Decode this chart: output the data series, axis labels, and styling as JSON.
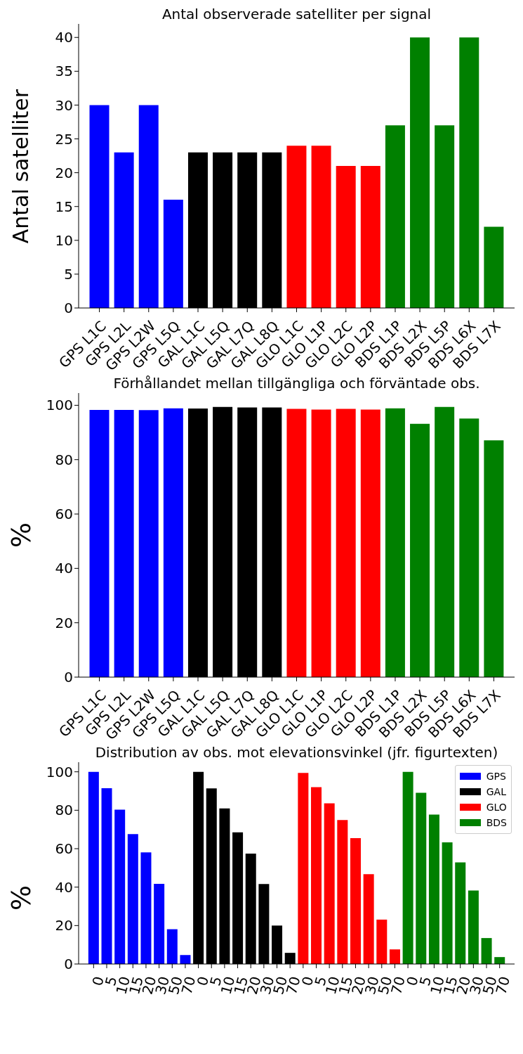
{
  "chart_data": [
    {
      "type": "bar",
      "title": "Antal observerade satelliter per signal",
      "ylabel": "Antal satelliter",
      "categories": [
        "GPS L1C",
        "GPS L2L",
        "GPS L2W",
        "GPS L5Q",
        "GAL L1C",
        "GAL L5Q",
        "GAL L7Q",
        "GAL L8Q",
        "GLO L1C",
        "GLO L1P",
        "GLO L2C",
        "GLO L2P",
        "BDS L1P",
        "BDS L2X",
        "BDS L5P",
        "BDS L6X",
        "BDS L7X"
      ],
      "values": [
        30,
        23,
        30,
        16,
        23,
        23,
        23,
        23,
        24,
        24,
        21,
        21,
        27,
        40,
        27,
        40,
        12
      ],
      "colors": [
        "#0000ff",
        "#0000ff",
        "#0000ff",
        "#0000ff",
        "#000000",
        "#000000",
        "#000000",
        "#000000",
        "#ff0000",
        "#ff0000",
        "#ff0000",
        "#ff0000",
        "#008000",
        "#008000",
        "#008000",
        "#008000",
        "#008000"
      ],
      "ylim": [
        0,
        42
      ],
      "yticks": [
        0,
        5,
        10,
        15,
        20,
        25,
        30,
        35,
        40
      ],
      "grid": false,
      "legend": false
    },
    {
      "type": "bar",
      "title": "Förhållandet mellan tillgängliga och förväntade obs.",
      "ylabel": "%",
      "categories": [
        "GPS L1C",
        "GPS L2L",
        "GPS L2W",
        "GPS L5Q",
        "GAL L1C",
        "GAL L5Q",
        "GAL L7Q",
        "GAL L8Q",
        "GLO L1C",
        "GLO L1P",
        "GLO L2C",
        "GLO L2P",
        "BDS L1P",
        "BDS L2X",
        "BDS L5P",
        "BDS L6X",
        "BDS L7X"
      ],
      "values": [
        98.3,
        98.3,
        98.2,
        98.9,
        98.8,
        99.4,
        99.2,
        99.2,
        98.7,
        98.4,
        98.7,
        98.4,
        98.9,
        93.2,
        99.4,
        95.1,
        87.1
      ],
      "colors": [
        "#0000ff",
        "#0000ff",
        "#0000ff",
        "#0000ff",
        "#000000",
        "#000000",
        "#000000",
        "#000000",
        "#ff0000",
        "#ff0000",
        "#ff0000",
        "#ff0000",
        "#008000",
        "#008000",
        "#008000",
        "#008000",
        "#008000"
      ],
      "ylim": [
        0,
        104.5
      ],
      "yticks": [
        0,
        20,
        40,
        60,
        80,
        100
      ],
      "grid": false,
      "legend": false
    },
    {
      "type": "bar",
      "title": "Distribution av obs. mot elevationsvinkel (jfr. figurtexten)",
      "ylabel": "%",
      "categories": [
        "0",
        "5",
        "10",
        "15",
        "20",
        "30",
        "50",
        "70",
        "0",
        "5",
        "10",
        "15",
        "20",
        "30",
        "50",
        "70",
        "0",
        "5",
        "10",
        "15",
        "20",
        "30",
        "50",
        "70",
        "0",
        "5",
        "10",
        "15",
        "20",
        "30",
        "50",
        "70"
      ],
      "stacked": true,
      "series": [
        {
          "name": "GPS",
          "color": "#0000ff",
          "values": [
            100,
            91.5,
            80.3,
            67.6,
            58.1,
            41.7,
            18.1,
            4.7,
            null,
            null,
            null,
            null,
            null,
            null,
            null,
            null,
            null,
            null,
            null,
            null,
            null,
            null,
            null,
            null,
            null,
            null,
            null,
            null,
            null,
            null,
            null,
            null
          ]
        },
        {
          "name": "GAL",
          "color": "#000000",
          "values": [
            null,
            null,
            null,
            null,
            null,
            null,
            null,
            null,
            100,
            91.4,
            80.9,
            68.5,
            57.4,
            41.6,
            20,
            5.8,
            null,
            null,
            null,
            null,
            null,
            null,
            null,
            null,
            null,
            null,
            null,
            null,
            null,
            null,
            null,
            null
          ]
        },
        {
          "name": "GLO",
          "color": "#ff0000",
          "values": [
            null,
            null,
            null,
            null,
            null,
            null,
            null,
            null,
            null,
            null,
            null,
            null,
            null,
            null,
            null,
            null,
            99.4,
            92,
            83.6,
            74.9,
            65.5,
            46.7,
            23.1,
            7.6,
            null,
            null,
            null,
            null,
            null,
            null,
            null,
            null
          ]
        },
        {
          "name": "BDS",
          "color": "#008000",
          "values": [
            null,
            null,
            null,
            null,
            null,
            null,
            null,
            null,
            null,
            null,
            null,
            null,
            null,
            null,
            null,
            null,
            null,
            null,
            null,
            null,
            null,
            null,
            null,
            null,
            100,
            89.1,
            77.7,
            63.3,
            52.9,
            38.2,
            13.5,
            3.6
          ]
        }
      ],
      "ylim": [
        0,
        105
      ],
      "yticks": [
        0,
        20,
        40,
        60,
        80,
        100
      ],
      "grid": false,
      "legend": "top right"
    }
  ]
}
